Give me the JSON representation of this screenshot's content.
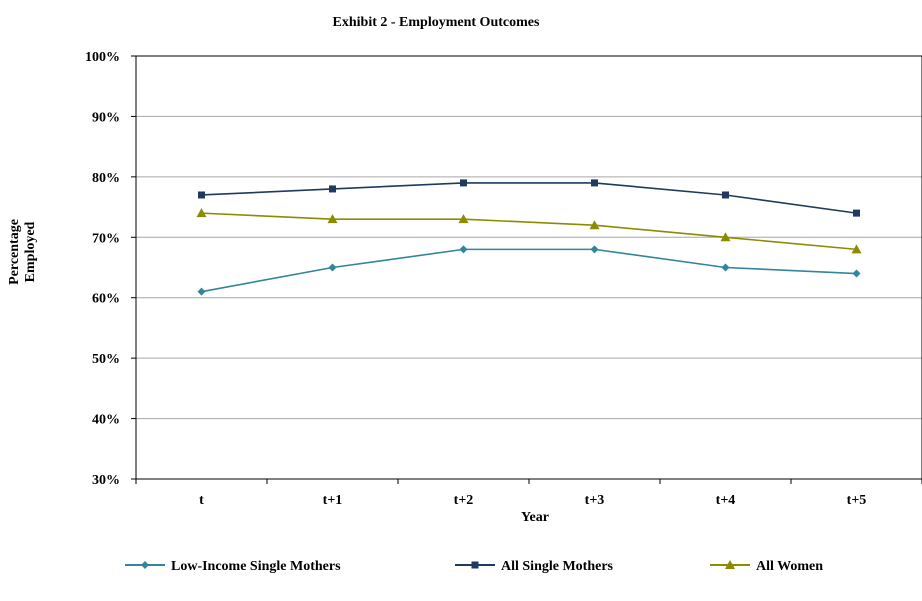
{
  "chart_data": {
    "type": "line",
    "title": "Exhibit 2 - Employment Outcomes",
    "xlabel": "Year",
    "ylabel": [
      "Percentage",
      "Employed"
    ],
    "categories": [
      "t",
      "t+1",
      "t+2",
      "t+3",
      "t+4",
      "t+5"
    ],
    "ylim": [
      30,
      100
    ],
    "yticks": [
      "30%",
      "40%",
      "50%",
      "60%",
      "70%",
      "80%",
      "90%",
      "100%"
    ],
    "grid": true,
    "legend_position": "bottom",
    "series": [
      {
        "name": "Low-Income Single Mothers",
        "values": [
          61,
          65,
          68,
          68,
          65,
          64
        ],
        "color": "#31859c",
        "marker": "diamond"
      },
      {
        "name": "All Single Mothers",
        "values": [
          77,
          78,
          79,
          79,
          77,
          74
        ],
        "color": "#1f3a5f",
        "marker": "square"
      },
      {
        "name": "All Women",
        "values": [
          74,
          73,
          73,
          72,
          70,
          68
        ],
        "color": "#8c8c00",
        "marker": "triangle"
      }
    ]
  }
}
